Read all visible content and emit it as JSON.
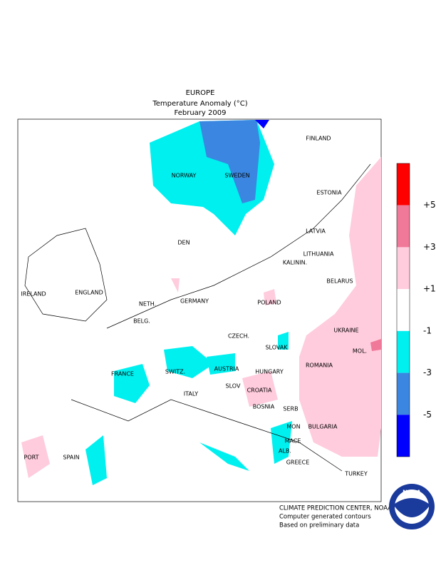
{
  "header": {
    "region": "EUROPE",
    "title": "Temperature Anomaly (°C)",
    "period": "February 2009"
  },
  "map": {
    "labels": [
      "NORWAY",
      "SWEDEN",
      "FINLAND",
      "ESTONIA",
      "LATVIA",
      "LITHUANIA",
      "DEN",
      "KALININ.",
      "BELARUS",
      "IRELAND",
      "ENGLAND",
      "NETH.",
      "GERMANY",
      "POLAND",
      "BELG.",
      "CZECH.",
      "SLOVAK",
      "UKRAINE",
      "FRANCE",
      "SWITZ.",
      "AUSTRIA",
      "HUNGARY",
      "MOL.",
      "ROMANIA",
      "SLOV",
      "CROATIA",
      "ITALY",
      "BOSNIA",
      "SERB",
      "MON",
      "BULGARIA",
      "MACE",
      "ALB.",
      "PORT",
      "SPAIN",
      "GREECE",
      "TURKEY"
    ]
  },
  "legend": {
    "colors": [
      "#ff0000",
      "#f07898",
      "#ffccdd",
      "#ffffff",
      "#00f0f0",
      "#3a86e0",
      "#0000ff"
    ],
    "labels": [
      "+5",
      "+3",
      "+1",
      "-1",
      "-3",
      "-5"
    ]
  },
  "footer": [
    "CLIMATE PREDICTION CENTER, NOAA",
    "Computer generated contours",
    "Based on preliminary data"
  ],
  "logo": {
    "text": "NOAA"
  }
}
